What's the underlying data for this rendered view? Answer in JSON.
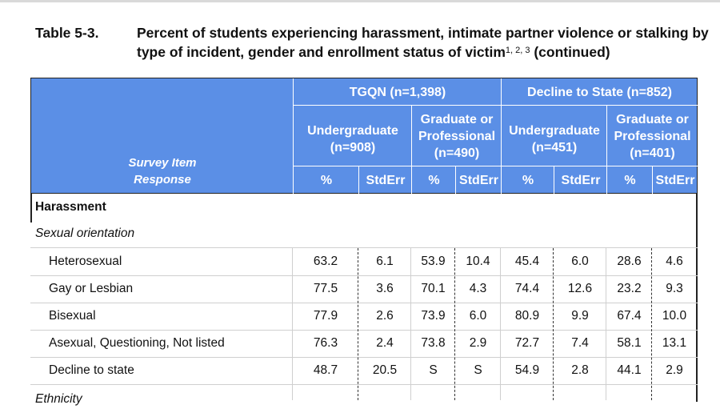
{
  "caption": {
    "number": "Table 5-3.",
    "title": "Percent of students experiencing harassment, intimate partner violence or stalking by type of incident, gender and enrollment status of victim",
    "superscript": "1, 2, 3",
    "suffix": "(continued)"
  },
  "header": {
    "survey_item": "Survey Item",
    "response": "Response",
    "groups": [
      "TGQN (n=1,398)",
      "Decline to State (n=852)"
    ],
    "subgroups": [
      [
        "Undergraduate",
        "(n=908)"
      ],
      [
        "Graduate or",
        "Professional",
        "(n=490)"
      ],
      [
        "Undergraduate",
        "(n=451)"
      ],
      [
        "Graduate or",
        "Professional",
        "(n=401)"
      ]
    ],
    "columns": [
      "%",
      "StdErr",
      "%",
      "StdErr",
      "%",
      "StdErr",
      "%",
      "StdErr"
    ]
  },
  "sections": {
    "section_title": "Harassment",
    "subsection_title": "Sexual orientation",
    "rows": [
      {
        "label": "Heterosexual",
        "values": [
          "63.2",
          "6.1",
          "53.9",
          "10.4",
          "45.4",
          "6.0",
          "28.6",
          "4.6"
        ]
      },
      {
        "label": "Gay or Lesbian",
        "values": [
          "77.5",
          "3.6",
          "70.1",
          "4.3",
          "74.4",
          "12.6",
          "23.2",
          "9.3"
        ]
      },
      {
        "label": "Bisexual",
        "values": [
          "77.9",
          "2.6",
          "73.9",
          "6.0",
          "80.9",
          "9.9",
          "67.4",
          "10.0"
        ]
      },
      {
        "label": "Asexual, Questioning, Not listed",
        "values": [
          "76.3",
          "2.4",
          "73.8",
          "2.9",
          "72.7",
          "7.4",
          "58.1",
          "13.1"
        ]
      },
      {
        "label": "Decline to state",
        "values": [
          "48.7",
          "20.5",
          "S",
          "S",
          "54.9",
          "2.8",
          "44.1",
          "2.9"
        ]
      }
    ],
    "next_section_partial": "Ethnicity"
  }
}
